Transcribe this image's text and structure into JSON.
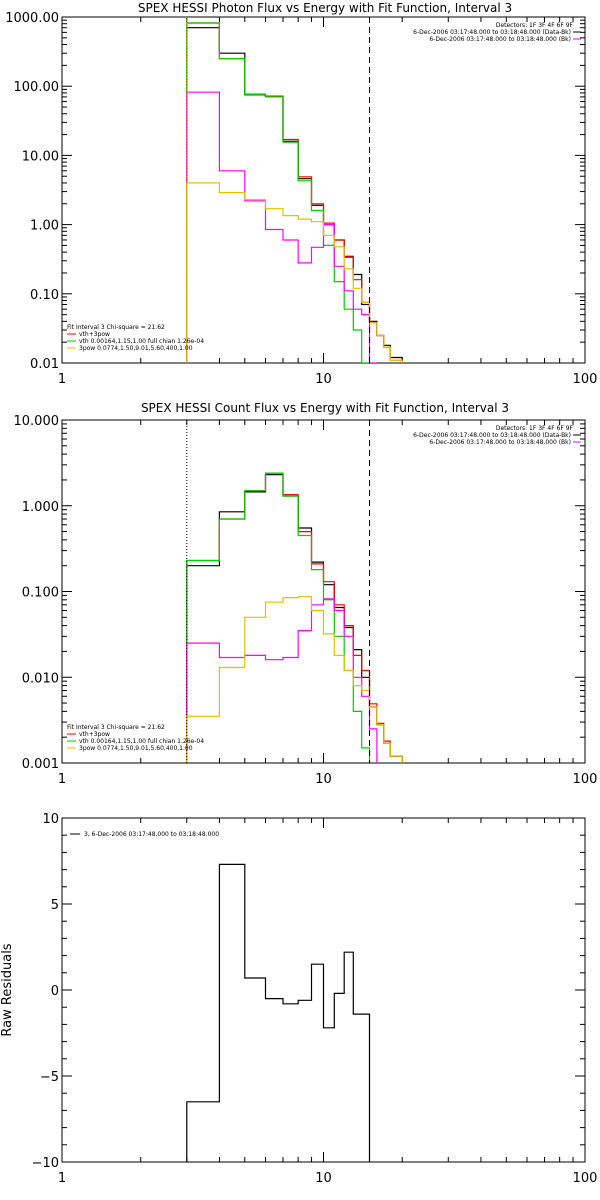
{
  "chart_data": [
    {
      "type": "line",
      "title": "SPEX HESSI Photon Flux vs Energy with Fit Function, Interval 3",
      "xscale": "log",
      "yscale": "log",
      "xlim": [
        1,
        100
      ],
      "ylim": [
        0.01,
        1000
      ],
      "x_tick_labels": [
        "1",
        "10",
        "100"
      ],
      "y_tick_labels": [
        "1000.00",
        "100.00",
        "10.00",
        "1.00",
        "0.10",
        "0.01"
      ],
      "y_tick_values": [
        1000,
        100,
        10,
        1,
        0.1,
        0.01
      ],
      "vlines": [
        {
          "x": 3,
          "style": "dotted",
          "color": "#ff9900"
        },
        {
          "x": 15,
          "style": "dashed",
          "color": "#000000"
        }
      ],
      "legend_top": {
        "detectors": "Detectors: 1F 3F 4F 6F 9F",
        "entries": [
          {
            "label": "6-Dec-2006 03:17:48.000 to 03:18:48.000 (Data-Bk)",
            "color": "#000000"
          },
          {
            "label": "6-Dec-2006 03:17:48.000 to 03:18:48.000 (Bk)",
            "color": "#ff00ff"
          }
        ]
      },
      "legend_bottom": {
        "header": "Fit Interval 3   Chi-square = 21.62",
        "entries": [
          {
            "label": "vth+3pow",
            "color": "#ff0000"
          },
          {
            "label": "vth 0.00164,1.15,1.00  full chian 1.26e-04",
            "color": "#00cc00"
          },
          {
            "label": "3pow 0.0774,1.50,9.01,5.60,400,1.00",
            "color": "#e0c000"
          }
        ]
      },
      "x_edges": [
        3,
        4,
        5,
        6,
        7,
        8,
        9,
        10,
        11,
        12,
        13,
        14,
        15,
        16,
        17,
        18,
        20
      ],
      "series": [
        {
          "key": "data",
          "color": "#000000",
          "values": [
            700,
            300,
            75,
            70,
            16,
            4.6,
            1.9,
            1.0,
            0.6,
            0.34,
            0.19,
            0.07,
            0.04,
            0.025,
            0.018,
            0.012
          ]
        },
        {
          "key": "total",
          "color": "#ff0000",
          "values": [
            820,
            250,
            77,
            72,
            17,
            4.9,
            2.0,
            1.05,
            0.6,
            0.35,
            0.16,
            0.075,
            0.038,
            0.025,
            0.017,
            0.011
          ]
        },
        {
          "key": "thermal",
          "color": "#00cc00",
          "values": [
            820,
            250,
            76,
            70,
            15.5,
            4.3,
            1.6,
            0.5,
            0.15,
            0.06,
            0.03,
            0.01,
            0.0,
            0.0,
            0.0,
            0.0
          ]
        },
        {
          "key": "background",
          "color": "#ff00ff",
          "values": [
            82,
            6,
            2.2,
            0.85,
            0.6,
            0.28,
            0.47,
            1.0,
            0.25,
            0.11,
            0.06,
            0.05,
            0.01,
            0.0,
            0.0,
            0.0
          ]
        },
        {
          "key": "powerlaw",
          "color": "#e0c000",
          "values": [
            4.0,
            2.9,
            2.3,
            1.7,
            1.35,
            1.2,
            1.1,
            0.7,
            0.48,
            0.23,
            0.12,
            0.075,
            0.038,
            0.025,
            0.017,
            0.011
          ]
        }
      ]
    },
    {
      "type": "line",
      "title": "SPEX HESSI Count Flux vs Energy with Fit Function, Interval 3",
      "xscale": "log",
      "yscale": "log",
      "xlim": [
        1,
        100
      ],
      "ylim": [
        0.001,
        10
      ],
      "x_tick_labels": [
        "1",
        "10",
        "100"
      ],
      "y_tick_labels": [
        "10.000",
        "1.000",
        "0.100",
        "0.010",
        "0.001"
      ],
      "y_tick_values": [
        10,
        1,
        0.1,
        0.01,
        0.001
      ],
      "vlines": [
        {
          "x": 3,
          "style": "dotted",
          "color": "#000000"
        },
        {
          "x": 15,
          "style": "dashed",
          "color": "#000000"
        }
      ],
      "legend_top": {
        "detectors": "Detectors: 1F 3F 4F 6F 9F",
        "entries": [
          {
            "label": "6-Dec-2006 03:17:48.000 to 03:18:48.000 (Data-Bk)",
            "color": "#000000"
          },
          {
            "label": "6-Dec-2006 03:17:48.000 to 03:18:48.000 (Bk)",
            "color": "#ff00ff"
          }
        ]
      },
      "legend_bottom": {
        "header": "Fit Interval 3   Chi-square = 21.62",
        "entries": [
          {
            "label": "vth+3pow",
            "color": "#ff0000"
          },
          {
            "label": "vth 0.00164,1.15,1.00  full chian 1.26e-04",
            "color": "#00cc00"
          },
          {
            "label": "3pow 0.0774,1.50,9.01,5.60,400,1.00",
            "color": "#e0c000"
          }
        ]
      },
      "x_edges": [
        3,
        4,
        5,
        6,
        7,
        8,
        9,
        10,
        11,
        12,
        13,
        14,
        15,
        16,
        17,
        18,
        20
      ],
      "series": [
        {
          "key": "data",
          "color": "#000000",
          "values": [
            0.2,
            0.85,
            1.45,
            2.3,
            1.3,
            0.55,
            0.22,
            0.12,
            0.065,
            0.038,
            0.021,
            0.01,
            0.0045,
            0.0028,
            0.0017,
            0.0012
          ]
        },
        {
          "key": "total",
          "color": "#ff0000",
          "values": [
            0.23,
            0.7,
            1.5,
            2.4,
            1.35,
            0.5,
            0.21,
            0.13,
            0.07,
            0.04,
            0.018,
            0.012,
            0.0049,
            0.0029,
            0.0018,
            0.0012
          ]
        },
        {
          "key": "thermal",
          "color": "#00cc00",
          "values": [
            0.23,
            0.7,
            1.5,
            2.4,
            1.3,
            0.45,
            0.18,
            0.08,
            0.03,
            0.012,
            0.004,
            0.0015,
            0.0,
            0.0,
            0.0,
            0.0
          ]
        },
        {
          "key": "background",
          "color": "#ff00ff",
          "values": [
            0.025,
            0.017,
            0.018,
            0.016,
            0.017,
            0.035,
            0.07,
            0.082,
            0.06,
            0.03,
            0.01,
            0.006,
            0.0025,
            0.0,
            0.0,
            0.0
          ]
        },
        {
          "key": "powerlaw",
          "color": "#e0c000",
          "values": [
            0.0035,
            0.013,
            0.05,
            0.075,
            0.085,
            0.087,
            0.06,
            0.032,
            0.018,
            0.012,
            0.008,
            0.007,
            0.0045,
            0.0028,
            0.0017,
            0.0012
          ]
        }
      ]
    },
    {
      "type": "line",
      "title": "",
      "ylabel": "Raw Residuals",
      "xscale": "log",
      "yscale": "linear",
      "xlim": [
        1,
        100
      ],
      "ylim": [
        -10,
        10
      ],
      "x_tick_labels": [
        "1",
        "10",
        "100"
      ],
      "y_tick_labels": [
        "10",
        "5",
        "0",
        "−5",
        "−10"
      ],
      "y_tick_values": [
        10,
        5,
        0,
        -5,
        -10
      ],
      "vlines": [],
      "legend_top": {
        "detectors": "",
        "entries": [
          {
            "label": "3,  6-Dec-2006 03:17:48.000 to 03:18:48.000",
            "color": "#000000"
          }
        ]
      },
      "x_edges": [
        3,
        4,
        5,
        6,
        7,
        8,
        9,
        10,
        11,
        12,
        13,
        14,
        15
      ],
      "series": [
        {
          "key": "residuals",
          "color": "#000000",
          "values": [
            -6.5,
            7.3,
            0.7,
            -0.5,
            -0.8,
            -0.6,
            1.5,
            -2.2,
            -0.2,
            2.2,
            -1.4,
            -1.4
          ]
        }
      ]
    }
  ]
}
